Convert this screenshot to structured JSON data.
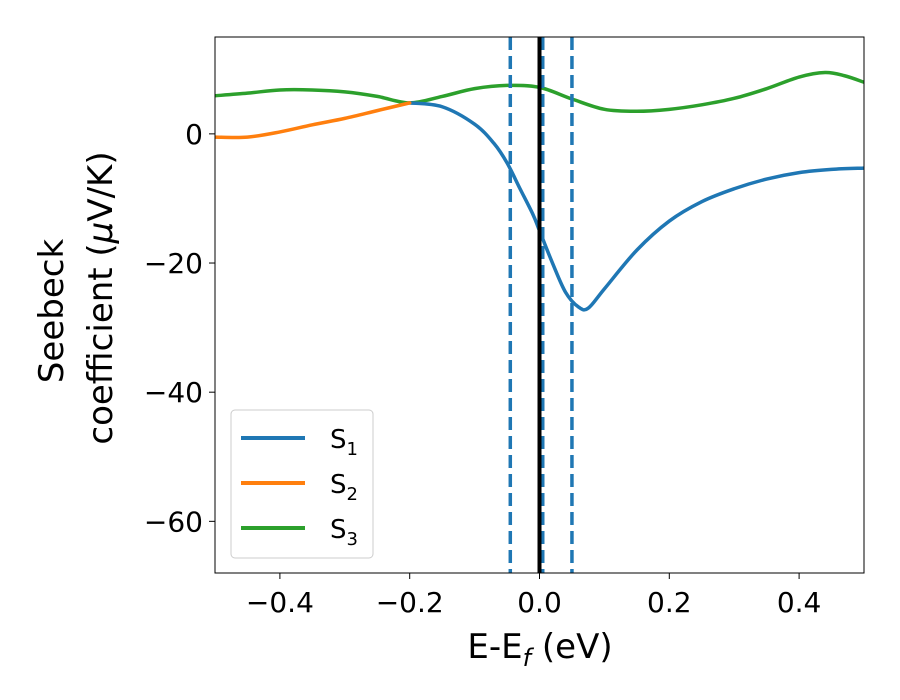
{
  "chart_data": {
    "type": "line",
    "xlabel": "E-E",
    "xlabel_sub": "f",
    "xlabel_suffix": " (eV)",
    "ylabel_line1": "Seebeck",
    "ylabel_line2": "coefficient  (",
    "ylabel_mu": "μ",
    "ylabel_suffix": "V/K)",
    "xlim": [
      -0.5,
      0.5
    ],
    "ylim": [
      -68,
      15
    ],
    "xticks": [
      -0.4,
      -0.2,
      0.0,
      0.2,
      0.4
    ],
    "xtick_labels": [
      "−0.4",
      "−0.2",
      "0.0",
      "0.2",
      "0.4"
    ],
    "yticks": [
      0,
      -20,
      -40,
      -60
    ],
    "ytick_labels": [
      "0",
      "−20",
      "−40",
      "−60"
    ],
    "grid": false,
    "legend_position": "lower-left",
    "series": [
      {
        "name": "S",
        "subscript": "1",
        "color": "#1f77b4",
        "x": [
          -0.2,
          -0.15,
          -0.1,
          -0.07,
          -0.05,
          -0.03,
          -0.01,
          0.0,
          0.02,
          0.04,
          0.06,
          0.075,
          0.1,
          0.15,
          0.2,
          0.25,
          0.3,
          0.35,
          0.4,
          0.45,
          0.5
        ],
        "y": [
          4.8,
          4.2,
          1.5,
          -1.5,
          -4.5,
          -8.5,
          -12.5,
          -15.0,
          -20.0,
          -24.5,
          -26.8,
          -27.0,
          -24.0,
          -18.0,
          -13.5,
          -10.5,
          -8.5,
          -7.0,
          -6.0,
          -5.5,
          -5.3
        ]
      },
      {
        "name": "S",
        "subscript": "2",
        "color": "#ff7f0e",
        "x": [
          -0.5,
          -0.45,
          -0.4,
          -0.35,
          -0.3,
          -0.25,
          -0.2
        ],
        "y": [
          -0.5,
          -0.5,
          0.3,
          1.4,
          2.4,
          3.6,
          4.8
        ]
      },
      {
        "name": "S",
        "subscript": "3",
        "color": "#2ca02c",
        "x": [
          -0.5,
          -0.45,
          -0.4,
          -0.35,
          -0.3,
          -0.25,
          -0.2,
          -0.15,
          -0.1,
          -0.05,
          0.0,
          0.05,
          0.1,
          0.15,
          0.2,
          0.25,
          0.3,
          0.35,
          0.4,
          0.44,
          0.47,
          0.5
        ],
        "y": [
          5.9,
          6.3,
          6.8,
          6.8,
          6.5,
          5.8,
          4.8,
          5.8,
          7.0,
          7.5,
          7.2,
          5.4,
          3.8,
          3.5,
          3.8,
          4.5,
          5.5,
          7.0,
          8.8,
          9.5,
          9.0,
          8.0
        ]
      }
    ],
    "vertical_lines": [
      {
        "x": -0.045,
        "style": "dashed",
        "color": "#1f77b4"
      },
      {
        "x": 0.005,
        "style": "dashed",
        "color": "#1f77b4"
      },
      {
        "x": 0.05,
        "style": "dashed",
        "color": "#1f77b4"
      },
      {
        "x": 0.0,
        "style": "solid",
        "color": "#000000"
      }
    ]
  }
}
